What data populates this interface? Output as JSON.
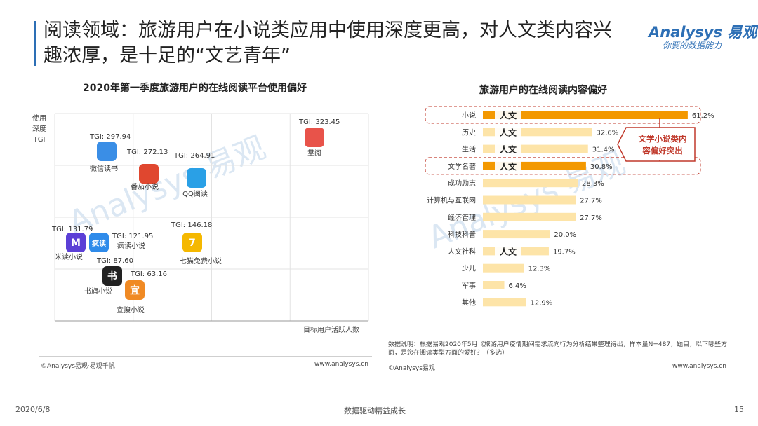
{
  "title": "阅读领域：旅游用户在小说类应用中使用深度更高，对人文类内容兴趣浓厚，是十足的“文艺青年”",
  "logo": {
    "main": "Analysys 易观",
    "sub": "你要的数据能力"
  },
  "watermark": "Analysys 易观",
  "colors": {
    "accent": "#2d6fb5",
    "highlight": "#f39800",
    "bar": "#fde4a8",
    "callout": "#c0392b"
  },
  "chart_data": [
    {
      "type": "scatter",
      "title": "2020年第一季度旅游用户的在线阅读平台使用偏好",
      "xlabel": "目标用户活跃人数",
      "ylabel": "使用深度TGI",
      "points": [
        {
          "name": "掌阅",
          "tgi": "TGI: 323.45",
          "value": 323.45,
          "color": "#e8534a"
        },
        {
          "name": "微信读书",
          "tgi": "TGI: 297.94",
          "value": 297.94,
          "color": "#3a8ee6"
        },
        {
          "name": "番茄小说",
          "tgi": "TGI: 272.13",
          "value": 272.13,
          "color": "#e0472f"
        },
        {
          "name": "QQ阅读",
          "tgi": "TGI: 264.91",
          "value": 264.91,
          "color": "#2aa0e6"
        },
        {
          "name": "七猫免费小说",
          "tgi": "TGI: 146.18",
          "value": 146.18,
          "color": "#f5b800"
        },
        {
          "name": "米读小说",
          "tgi": "TGI: 131.79",
          "value": 131.79,
          "color": "#5b3fd6"
        },
        {
          "name": "疯读小说",
          "tgi": "TGI: 121.95",
          "value": 121.95,
          "color": "#2f8bea"
        },
        {
          "name": "书旗小说",
          "tgi": "TGI: 87.60",
          "value": 87.6,
          "color": "#222222"
        },
        {
          "name": "宜搜小说",
          "tgi": "TGI: 63.16",
          "value": 63.16,
          "color": "#f08a24"
        }
      ],
      "icon_text": {
        "米读小说": "M",
        "疯读小说": "疯读",
        "书旗小说": "书",
        "宜搜小说": "宜",
        "七猫免费小说": "7"
      }
    },
    {
      "type": "bar",
      "title": "旅游用户的在线阅读内容偏好",
      "categories": [
        "小说",
        "历史",
        "生活",
        "文学名著",
        "成功励志",
        "计算机与互联网",
        "经济管理",
        "科技科普",
        "人文社科",
        "少儿",
        "军事",
        "其他"
      ],
      "values": [
        61.2,
        32.6,
        31.4,
        30.8,
        28.3,
        27.7,
        27.7,
        20.0,
        19.7,
        12.3,
        6.4,
        12.9
      ],
      "value_labels": [
        "61.2%",
        "32.6%",
        "31.4%",
        "30.8%",
        "28.3%",
        "27.7%",
        "27.7%",
        "20.0%",
        "19.7%",
        "12.3%",
        "6.4%",
        "12.9%"
      ],
      "highlighted": [
        0,
        3
      ],
      "tag_label": "人文",
      "tagged": [
        0,
        1,
        2,
        3,
        8
      ],
      "callout": "文学小说类内容偏好突出"
    }
  ],
  "left_footer": {
    "copyright": "©Analysys易观·易观千帆",
    "site": "www.analysys.cn"
  },
  "right_footer": {
    "note": "数据说明：根据易观2020年5月《旅游用户疫情期间需求流向行为分析结果整理得出，样本量N=487，题目，以下哪些方面，是您在阅读类型方面的爱好？（多选）",
    "copyright": "©Analysys易观",
    "site": "www.analysys.cn"
  },
  "page": {
    "date": "2020/6/8",
    "slogan": "数据驱动精益成长",
    "number": "15"
  }
}
